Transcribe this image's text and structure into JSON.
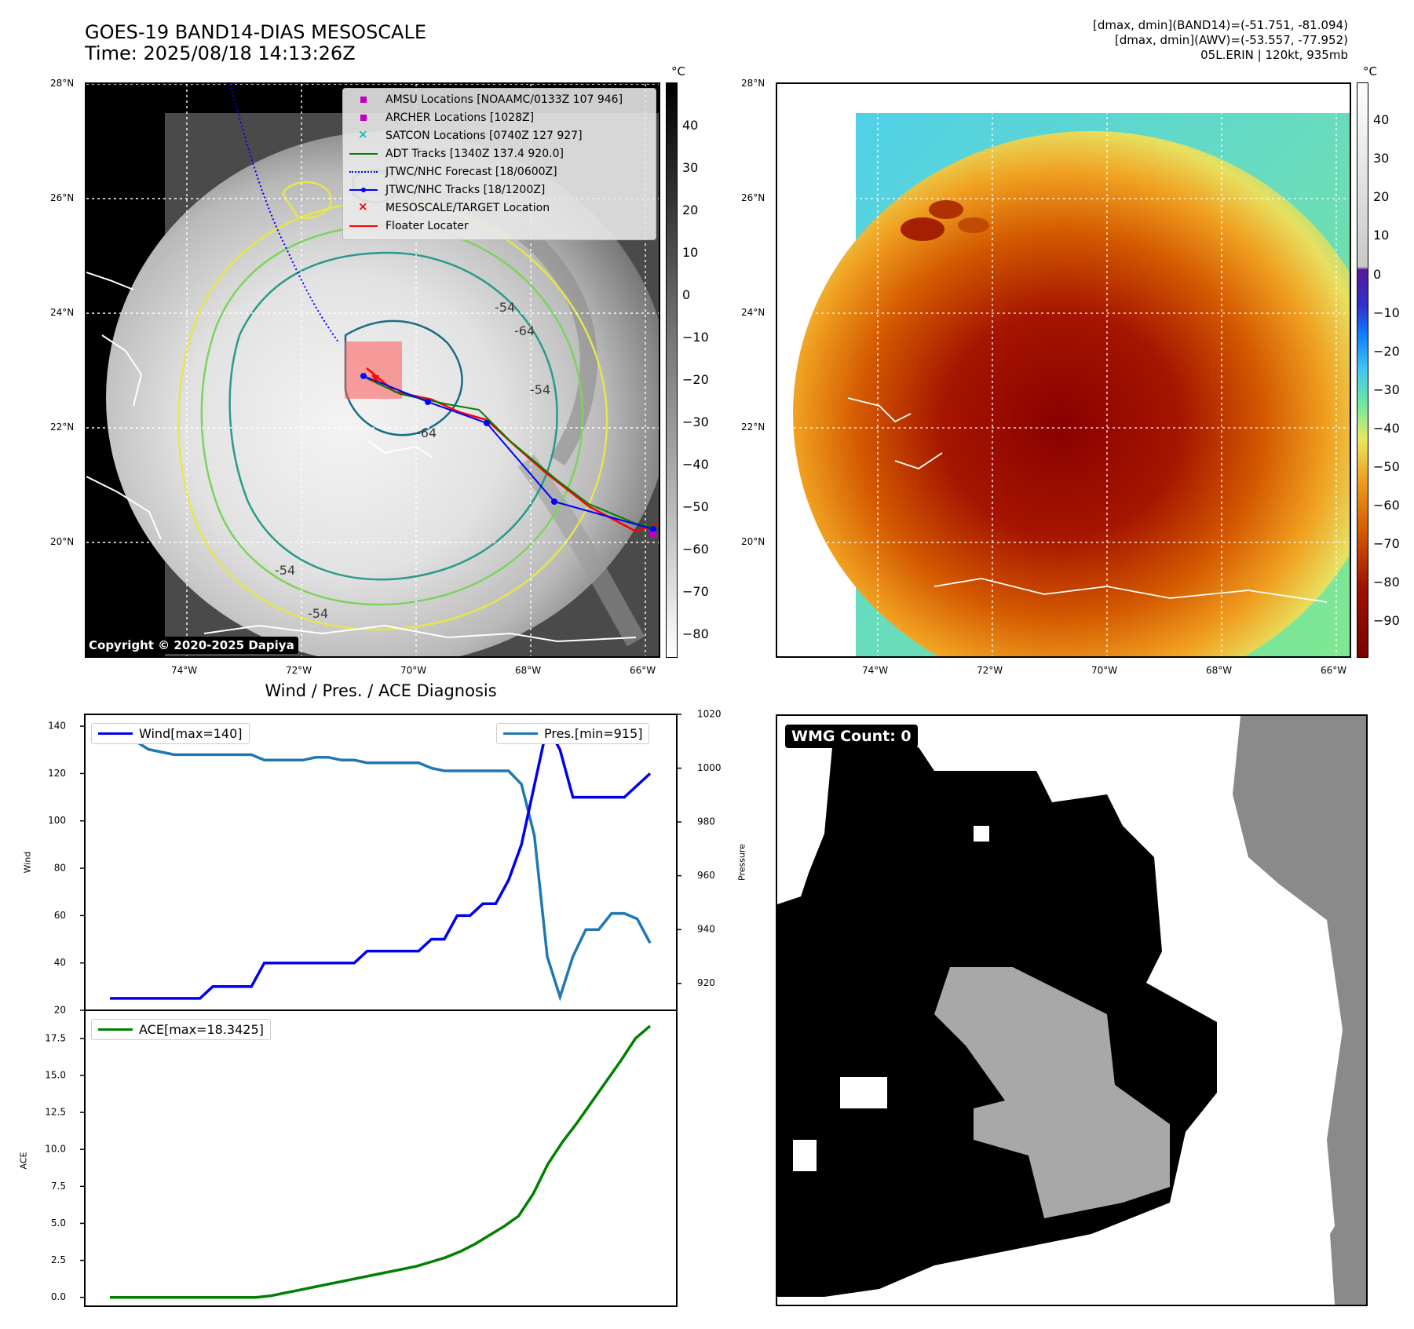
{
  "header": {
    "title_line1": "GOES-19 BAND14-DIAS MESOSCALE",
    "title_line2": "Time: 2025/08/18 14:13:26Z",
    "stats_line1": "[dmax, dmin](BAND14)=(-51.751, -81.094)",
    "stats_line2": "[dmax, dmin](AWV)=(-53.557, -77.952)",
    "stats_line3": "05L.ERIN | 120kt, 935mb"
  },
  "map": {
    "lat_labels": [
      "28°N",
      "26°N",
      "24°N",
      "22°N",
      "20°N"
    ],
    "lon_labels": [
      "74°W",
      "72°W",
      "70°W",
      "68°W",
      "66°W"
    ],
    "copyright": "Copyright © 2020-2025 Dapiya",
    "contour_labels": [
      "-54",
      "-64",
      "-54",
      "-64",
      "-54",
      "-54"
    ],
    "legend": [
      {
        "label": "AMSU Locations [NOAAMC/0133Z 107 946]",
        "color": "#c000c0",
        "marker": "square"
      },
      {
        "label": "ARCHER Locations [1028Z]",
        "color": "#c000c0",
        "marker": "square"
      },
      {
        "label": "SATCON Locations [0740Z 127 927]",
        "color": "#00c0c0",
        "marker": "x"
      },
      {
        "label": "ADT Tracks [1340Z 137.4 920.0]",
        "color": "#008000",
        "marker": "line"
      },
      {
        "label": "JTWC/NHC Forecast [18/0600Z]",
        "color": "#0000ff",
        "marker": "dotted"
      },
      {
        "label": "JTWC/NHC Tracks [18/1200Z]",
        "color": "#0000ff",
        "marker": "line-dot"
      },
      {
        "label": "MESOSCALE/TARGET Location",
        "color": "#ff0000",
        "marker": "x"
      },
      {
        "label": "Floater Locater",
        "color": "#ff0000",
        "marker": "line"
      }
    ]
  },
  "colorbar_left": {
    "unit": "°C",
    "ticks": [
      "40",
      "30",
      "20",
      "10",
      "0",
      "−10",
      "−20",
      "−30",
      "−40",
      "−50",
      "−60",
      "−70",
      "−80"
    ]
  },
  "colorbar_right": {
    "unit": "°C",
    "ticks": [
      "40",
      "30",
      "20",
      "10",
      "0",
      "−10",
      "−20",
      "−30",
      "−40",
      "−50",
      "−60",
      "−70",
      "−80",
      "−90"
    ]
  },
  "chart_data": [
    {
      "type": "line",
      "title": "Wind / Pres. / ACE Diagnosis",
      "ylabel": "Wind",
      "ylabel_right": "Pressure",
      "ylim": [
        20,
        145
      ],
      "ylim_right": [
        910,
        1020
      ],
      "yticks": [
        "140",
        "120",
        "100",
        "80",
        "60",
        "40",
        "20"
      ],
      "yticks_right": [
        "1020",
        "1000",
        "980",
        "960",
        "940",
        "920"
      ],
      "series": [
        {
          "name": "Wind[max=140]",
          "color": "#0000ee",
          "values": [
            25,
            25,
            25,
            25,
            25,
            25,
            25,
            25,
            30,
            30,
            30,
            30,
            40,
            40,
            40,
            40,
            40,
            40,
            40,
            40,
            45,
            45,
            45,
            45,
            45,
            50,
            50,
            60,
            60,
            65,
            65,
            75,
            90,
            115,
            140,
            130,
            110,
            110,
            110,
            110,
            110,
            115,
            120
          ]
        },
        {
          "name": "Pres.[min=915]",
          "color": "#1f77b4",
          "values": [
            1010,
            1010,
            1010,
            1007,
            1006,
            1005,
            1005,
            1005,
            1005,
            1005,
            1005,
            1005,
            1003,
            1003,
            1003,
            1003,
            1004,
            1004,
            1003,
            1003,
            1002,
            1002,
            1002,
            1002,
            1002,
            1000,
            999,
            999,
            999,
            999,
            999,
            999,
            994,
            975,
            930,
            915,
            930,
            940,
            940,
            946,
            946,
            944,
            935
          ]
        }
      ]
    },
    {
      "type": "line",
      "ylabel": "ACE",
      "ylim": [
        -0.6,
        19.4
      ],
      "yticks": [
        "17.5",
        "15.0",
        "12.5",
        "10.0",
        "7.5",
        "5.0",
        "2.5",
        "0.0"
      ],
      "series": [
        {
          "name": "ACE[max=18.3425]",
          "color": "#008000",
          "values": [
            0,
            0,
            0,
            0,
            0,
            0,
            0,
            0,
            0,
            0,
            0,
            0.1,
            0.3,
            0.5,
            0.7,
            0.9,
            1.1,
            1.3,
            1.5,
            1.7,
            1.9,
            2.1,
            2.4,
            2.7,
            3.1,
            3.6,
            4.2,
            4.8,
            5.5,
            7,
            9,
            10.5,
            11.8,
            13.2,
            14.6,
            16,
            17.5,
            18.3425
          ]
        }
      ]
    }
  ],
  "wmg": {
    "label": "WMG Count: 0"
  }
}
